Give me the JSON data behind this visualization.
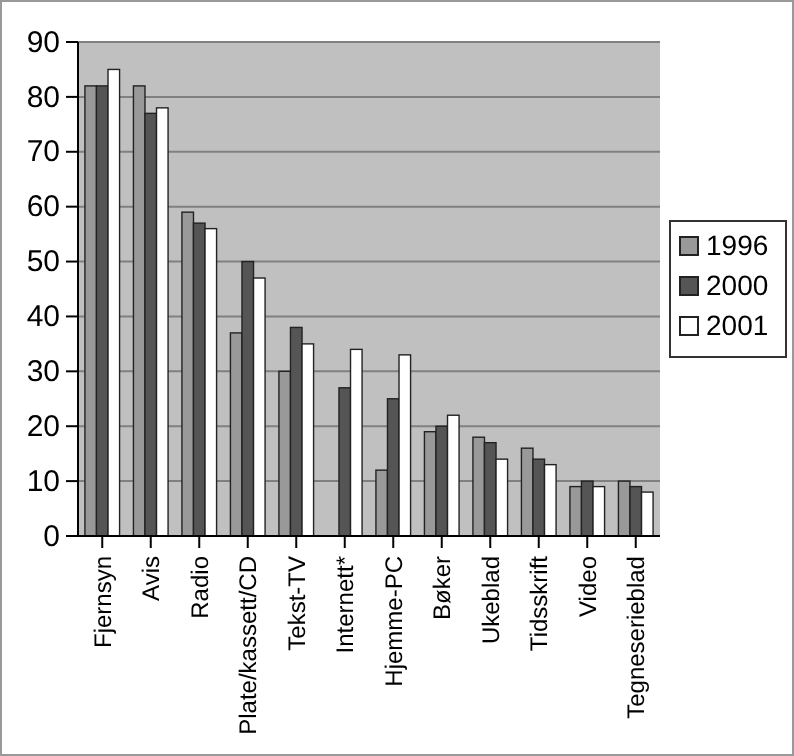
{
  "chart_data": {
    "type": "bar",
    "categories": [
      "Fjernsyn",
      "Avis",
      "Radio",
      "Plate/kassett/CD",
      "Tekst-TV",
      "Internett*",
      "Hjemme-PC",
      "Bøker",
      "Ukeblad",
      "Tidsskrift",
      "Video",
      "Tegneserieblad"
    ],
    "series": [
      {
        "name": "1996",
        "color": "#999999",
        "values": [
          82,
          82,
          59,
          37,
          30,
          null,
          12,
          19,
          18,
          16,
          9,
          10
        ]
      },
      {
        "name": "2000",
        "color": "#555555",
        "values": [
          82,
          77,
          57,
          50,
          38,
          27,
          25,
          20,
          17,
          14,
          10,
          9
        ]
      },
      {
        "name": "2001",
        "color": "#ffffff",
        "values": [
          85,
          78,
          56,
          47,
          35,
          34,
          33,
          22,
          14,
          13,
          9,
          8
        ]
      }
    ],
    "ylim": [
      0,
      90
    ],
    "yticks": [
      0,
      10,
      20,
      30,
      40,
      50,
      60,
      70,
      80,
      90
    ],
    "grid": "y",
    "legend": "right"
  }
}
